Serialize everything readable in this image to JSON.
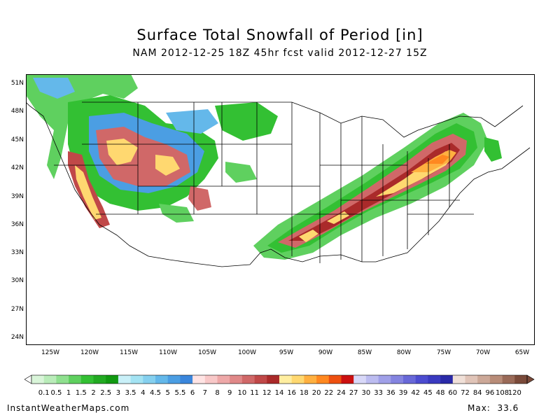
{
  "title": "Surface Total Snowfall of Period [in]",
  "subtitle": "NAM 2012-12-25 18Z 45hr fcst valid 2012-12-27 15Z",
  "lat_labels": [
    "51N",
    "48N",
    "45N",
    "42N",
    "39N",
    "36N",
    "33N",
    "30N",
    "27N",
    "24N"
  ],
  "lon_labels": [
    "125W",
    "120W",
    "115W",
    "110W",
    "105W",
    "100W",
    "95W",
    "90W",
    "85W",
    "80W",
    "75W",
    "70W",
    "65W"
  ],
  "colorbar": {
    "labels": [
      "0.1",
      "0.5",
      "1",
      "1.5",
      "2",
      "2.5",
      "3",
      "3.5",
      "4",
      "4.5",
      "5",
      "5.5",
      "6",
      "7",
      "8",
      "9",
      "10",
      "11",
      "12",
      "14",
      "16",
      "18",
      "20",
      "22",
      "24",
      "27",
      "30",
      "33",
      "36",
      "39",
      "42",
      "45",
      "48",
      "60",
      "72",
      "84",
      "96",
      "108",
      "120"
    ],
    "colors": [
      "#d9f5d9",
      "#b9ecb9",
      "#8fe08f",
      "#5fd05f",
      "#33c033",
      "#22aa22",
      "#119911",
      "#c9f0f8",
      "#a3e3f3",
      "#85d0ef",
      "#64b8ea",
      "#4b9ee3",
      "#3a86dc",
      "#ffe4e4",
      "#f8c8c8",
      "#eea8a8",
      "#e08888",
      "#d06868",
      "#c04848",
      "#aa2a2a",
      "#ffeea0",
      "#ffd870",
      "#ffb040",
      "#ff8820",
      "#ee5010",
      "#cc1010",
      "#d8d8f8",
      "#bcbcf0",
      "#a0a0e8",
      "#8484e0",
      "#6868d8",
      "#4c4cd0",
      "#3a3ac0",
      "#2a2aa8",
      "#f0e0d8",
      "#e0c4b8",
      "#cca898",
      "#b88c78",
      "#9a6a58",
      "#7a4a3a"
    ]
  },
  "footer": {
    "site": "InstantWeatherMaps.com",
    "max_label": "Max:",
    "max_value": "33.6"
  },
  "legend_colors": {
    "land_outline": "#000000"
  }
}
